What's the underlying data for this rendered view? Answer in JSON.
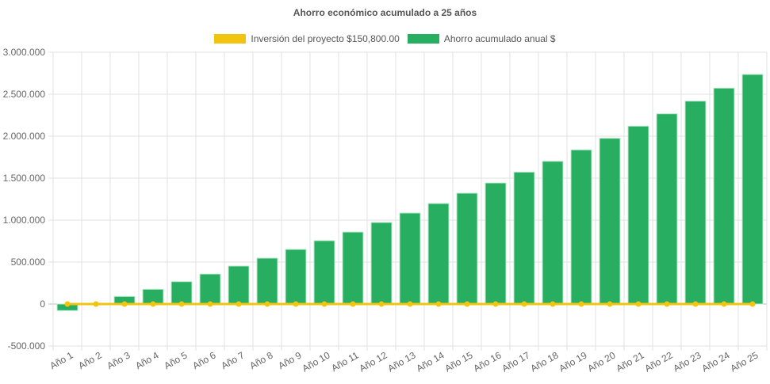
{
  "chart_data": {
    "type": "bar",
    "title": "Ahorro económico acumulado a 25 años",
    "categories": [
      "Año 1",
      "Año 2",
      "Año 3",
      "Año 4",
      "Año 5",
      "Año 6",
      "Año 7",
      "Año 8",
      "Año 9",
      "Año 10",
      "Año 11",
      "Año 12",
      "Año 13",
      "Año 14",
      "Año 15",
      "Año 16",
      "Año 17",
      "Año 18",
      "Año 19",
      "Año 20",
      "Año 21",
      "Año 22",
      "Año 23",
      "Año 24",
      "Año 25"
    ],
    "series": [
      {
        "name": "Inversión del proyecto $150,800.00",
        "type": "line",
        "color": "#f1c40f",
        "values": [
          0,
          0,
          0,
          0,
          0,
          0,
          0,
          0,
          0,
          0,
          0,
          0,
          0,
          0,
          0,
          0,
          0,
          0,
          0,
          0,
          0,
          0,
          0,
          0,
          0
        ]
      },
      {
        "name": "Ahorro acumulado anual $",
        "type": "bar",
        "color": "#27ae60",
        "values": [
          -78000,
          0,
          91000,
          176000,
          267000,
          358000,
          453000,
          547000,
          651000,
          755000,
          858000,
          972000,
          1085000,
          1198000,
          1321000,
          1443000,
          1572000,
          1701000,
          1837000,
          1975000,
          2120000,
          2267000,
          2418000,
          2573000,
          2736000
        ]
      }
    ],
    "ylim": [
      -500000,
      3000000
    ],
    "yticks": [
      "3.000.000",
      "2.500.000",
      "2.000.000",
      "1.500.000",
      "1.000.000",
      "500.000",
      "0",
      "-500.000"
    ],
    "ytick_values": [
      3000000,
      2500000,
      2000000,
      1500000,
      1000000,
      500000,
      0,
      -500000
    ],
    "grid": true,
    "legend": "top"
  }
}
